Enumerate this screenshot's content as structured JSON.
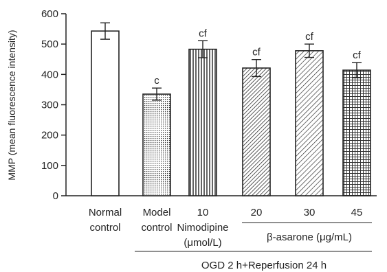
{
  "chart_data": {
    "type": "bar",
    "title": "",
    "xlabel": "",
    "ylabel": "MMP (mean fluorescence intensity)",
    "ylim": [
      0,
      600
    ],
    "yticks": [
      0,
      100,
      200,
      300,
      400,
      500,
      600
    ],
    "grid": false,
    "categories": [
      [
        "Normal",
        "control"
      ],
      [
        "Model",
        "control"
      ],
      [
        "10",
        "Nimodipine",
        "(μmol/L)"
      ],
      [
        "20"
      ],
      [
        "30"
      ],
      [
        "45"
      ]
    ],
    "values": [
      543,
      335,
      483,
      421,
      478,
      414
    ],
    "errors": [
      27,
      20,
      28,
      28,
      22,
      25
    ],
    "annotations": [
      "",
      "c",
      "cf",
      "cf",
      "cf",
      "cf"
    ],
    "fills": [
      "none",
      "dots",
      "vertical-lines",
      "diagonal-dense",
      "diagonal-sparse",
      "crosshatch"
    ],
    "group_labels": {
      "beta_asarone": "β-asarone (μg/mL)",
      "ogd": "OGD 2 h+Reperfusion 24 h"
    }
  }
}
